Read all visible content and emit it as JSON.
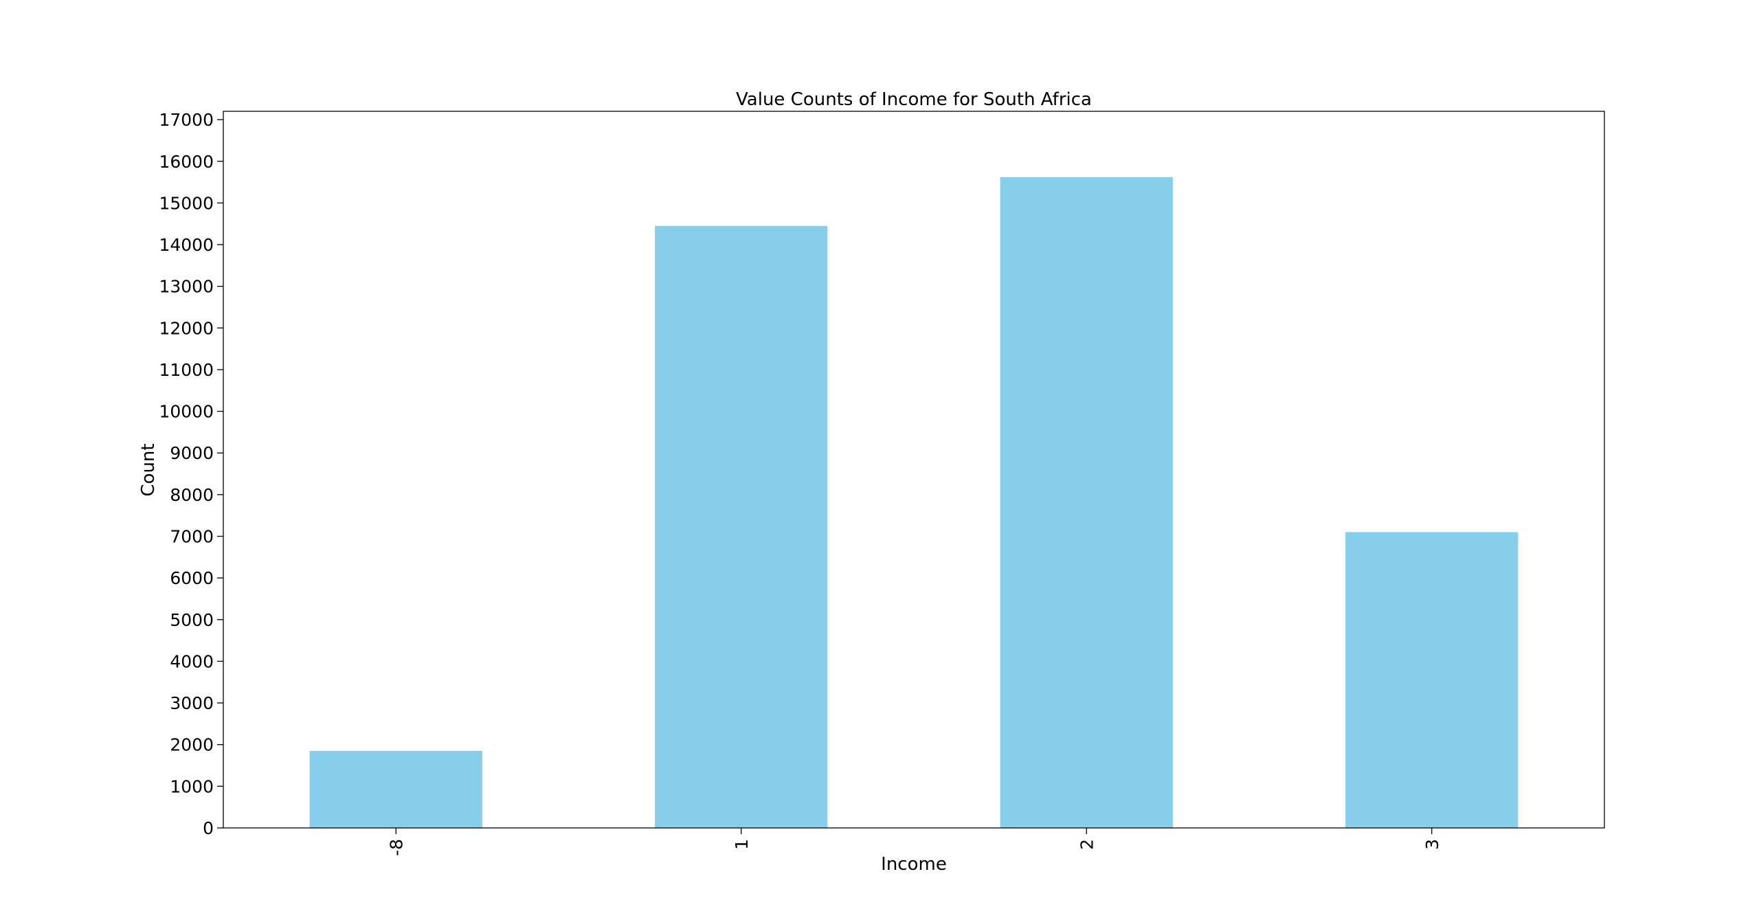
{
  "chart_data": {
    "type": "bar",
    "title": "Value Counts of Income for South Africa",
    "xlabel": "Income",
    "ylabel": "Count",
    "categories": [
      "-8",
      "1",
      "2",
      "3"
    ],
    "values": [
      1850,
      14450,
      15620,
      7100
    ],
    "ylim": [
      0,
      17200
    ],
    "yticks": [
      0,
      1000,
      2000,
      3000,
      4000,
      5000,
      6000,
      7000,
      8000,
      9000,
      10000,
      11000,
      12000,
      13000,
      14000,
      15000,
      16000,
      17000
    ],
    "bar_color": "#87CEEB",
    "grid": false,
    "legend": "none"
  }
}
